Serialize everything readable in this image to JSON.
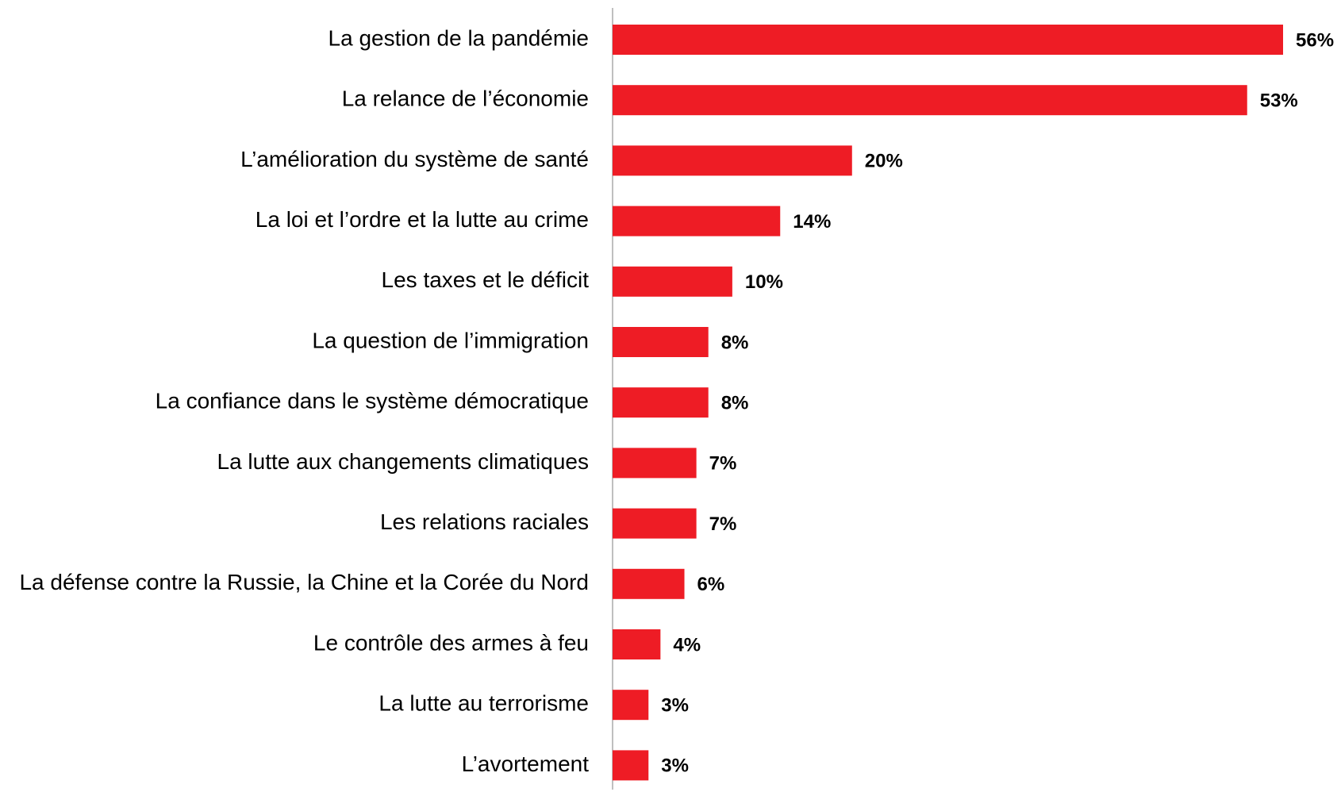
{
  "chart_data": {
    "type": "bar",
    "orientation": "horizontal",
    "color": "#ee1c25",
    "categories": [
      "La gestion de la pandémie",
      "La relance de l’économie",
      "L’amélioration du système de santé",
      "La loi et l’ordre et la lutte au crime",
      "Les taxes et le déficit",
      "La question de l’immigration",
      "La confiance dans le système démocratique",
      "La lutte aux changements climatiques",
      "Les relations raciales",
      "La défense contre la Russie, la Chine et la Corée du Nord",
      "Le contrôle des armes à feu",
      "La lutte au terrorisme",
      "L’avortement"
    ],
    "values": [
      56,
      53,
      20,
      14,
      10,
      8,
      8,
      7,
      7,
      6,
      4,
      3,
      3
    ],
    "value_labels": [
      "56%",
      "53%",
      "20%",
      "14%",
      "10%",
      "8%",
      "8%",
      "7%",
      "7%",
      "6%",
      "4%",
      "3%",
      "3%"
    ]
  }
}
